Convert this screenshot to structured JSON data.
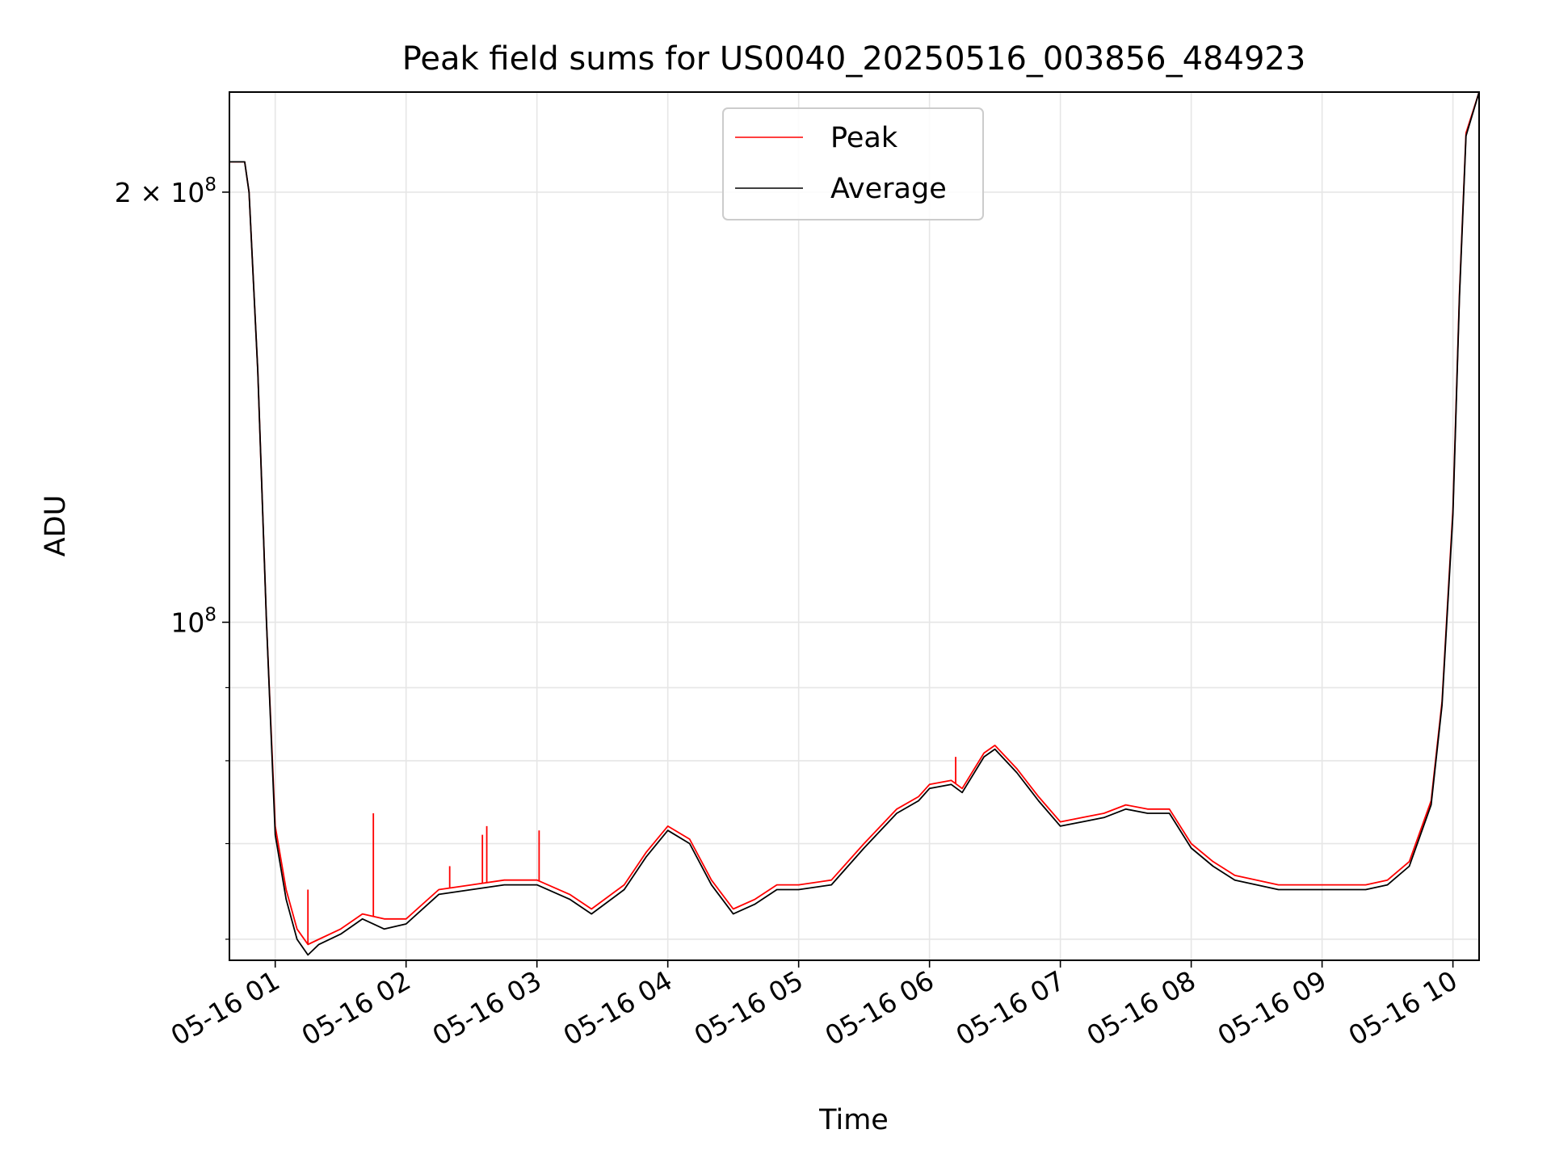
{
  "chart_data": {
    "type": "line",
    "title": "Peak field sums for US0040_20250516_003856_484923",
    "xlabel": "Time",
    "ylabel": "ADU",
    "yscale": "log",
    "xlim": [
      "05-16 00:39",
      "05-16 10:12"
    ],
    "ylim": [
      58000000,
      235000000
    ],
    "x_ticks": [
      {
        "x": "05-16 01:00",
        "label": "05-16 01"
      },
      {
        "x": "05-16 02:00",
        "label": "05-16 02"
      },
      {
        "x": "05-16 03:00",
        "label": "05-16 03"
      },
      {
        "x": "05-16 04:00",
        "label": "05-16 04"
      },
      {
        "x": "05-16 05:00",
        "label": "05-16 05"
      },
      {
        "x": "05-16 06:00",
        "label": "05-16 06"
      },
      {
        "x": "05-16 07:00",
        "label": "05-16 07"
      },
      {
        "x": "05-16 08:00",
        "label": "05-16 08"
      },
      {
        "x": "05-16 09:00",
        "label": "05-16 09"
      },
      {
        "x": "05-16 10:00",
        "label": "05-16 10"
      }
    ],
    "y_ticks": [
      {
        "y": 100000000,
        "label_base": "10",
        "label_exp": "8"
      },
      {
        "y": 200000000,
        "label_base": "2 × 10",
        "label_exp": "8"
      }
    ],
    "y_minor_ticks": [
      60000000,
      70000000,
      80000000,
      90000000
    ],
    "grid": true,
    "legend_position": "top-center",
    "series": [
      {
        "name": "Peak",
        "color": "#ff0000",
        "x": [
          "05-16 00:39",
          "05-16 00:46",
          "05-16 00:48",
          "05-16 00:52",
          "05-16 00:56",
          "05-16 01:00",
          "05-16 01:05",
          "05-16 01:10",
          "05-16 01:15",
          "05-16 01:20",
          "05-16 01:30",
          "05-16 01:40",
          "05-16 01:50",
          "05-16 02:00",
          "05-16 02:15",
          "05-16 02:30",
          "05-16 02:45",
          "05-16 03:00",
          "05-16 03:15",
          "05-16 03:25",
          "05-16 03:40",
          "05-16 03:50",
          "05-16 04:00",
          "05-16 04:10",
          "05-16 04:20",
          "05-16 04:30",
          "05-16 04:40",
          "05-16 04:50",
          "05-16 05:00",
          "05-16 05:15",
          "05-16 05:30",
          "05-16 05:45",
          "05-16 05:55",
          "05-16 06:00",
          "05-16 06:10",
          "05-16 06:15",
          "05-16 06:25",
          "05-16 06:30",
          "05-16 06:40",
          "05-16 06:50",
          "05-16 07:00",
          "05-16 07:10",
          "05-16 07:20",
          "05-16 07:30",
          "05-16 07:40",
          "05-16 07:50",
          "05-16 08:00",
          "05-16 08:10",
          "05-16 08:20",
          "05-16 08:30",
          "05-16 08:40",
          "05-16 09:00",
          "05-16 09:20",
          "05-16 09:30",
          "05-16 09:40",
          "05-16 09:50",
          "05-16 09:55",
          "05-16 10:00",
          "05-16 10:03",
          "05-16 10:06",
          "05-16 10:12"
        ],
        "y": [
          210000000,
          210000000,
          200000000,
          150000000,
          100000000,
          72000000,
          65000000,
          61000000,
          59500000,
          60000000,
          61000000,
          62500000,
          62000000,
          62000000,
          65000000,
          65500000,
          66000000,
          66000000,
          64500000,
          63000000,
          65500000,
          69000000,
          72000000,
          70500000,
          66000000,
          63000000,
          64000000,
          65500000,
          65500000,
          66000000,
          70000000,
          74000000,
          75500000,
          77000000,
          77500000,
          76500000,
          81000000,
          82000000,
          79000000,
          75500000,
          72500000,
          73000000,
          73500000,
          74500000,
          74000000,
          74000000,
          70000000,
          68000000,
          66500000,
          66000000,
          65500000,
          65500000,
          65500000,
          66000000,
          68000000,
          75000000,
          88000000,
          120000000,
          170000000,
          220000000,
          235000000
        ],
        "spikes": [
          {
            "x": "05-16 01:15",
            "y": 65000000
          },
          {
            "x": "05-16 01:45",
            "y": 73500000
          },
          {
            "x": "05-16 02:20",
            "y": 67500000
          },
          {
            "x": "05-16 02:35",
            "y": 71000000
          },
          {
            "x": "05-16 02:37",
            "y": 72000000
          },
          {
            "x": "05-16 03:01",
            "y": 71500000
          },
          {
            "x": "05-16 06:12",
            "y": 80500000
          }
        ]
      },
      {
        "name": "Average",
        "color": "#000000",
        "x": [
          "05-16 00:39",
          "05-16 00:46",
          "05-16 00:48",
          "05-16 00:52",
          "05-16 00:56",
          "05-16 01:00",
          "05-16 01:05",
          "05-16 01:10",
          "05-16 01:15",
          "05-16 01:20",
          "05-16 01:30",
          "05-16 01:40",
          "05-16 01:50",
          "05-16 02:00",
          "05-16 02:15",
          "05-16 02:30",
          "05-16 02:45",
          "05-16 03:00",
          "05-16 03:15",
          "05-16 03:25",
          "05-16 03:40",
          "05-16 03:50",
          "05-16 04:00",
          "05-16 04:10",
          "05-16 04:20",
          "05-16 04:30",
          "05-16 04:40",
          "05-16 04:50",
          "05-16 05:00",
          "05-16 05:15",
          "05-16 05:30",
          "05-16 05:45",
          "05-16 05:55",
          "05-16 06:00",
          "05-16 06:10",
          "05-16 06:15",
          "05-16 06:25",
          "05-16 06:30",
          "05-16 06:40",
          "05-16 06:50",
          "05-16 07:00",
          "05-16 07:10",
          "05-16 07:20",
          "05-16 07:30",
          "05-16 07:40",
          "05-16 07:50",
          "05-16 08:00",
          "05-16 08:10",
          "05-16 08:20",
          "05-16 08:30",
          "05-16 08:40",
          "05-16 09:00",
          "05-16 09:20",
          "05-16 09:30",
          "05-16 09:40",
          "05-16 09:50",
          "05-16 09:55",
          "05-16 10:00",
          "05-16 10:03",
          "05-16 10:06",
          "05-16 10:12"
        ],
        "y": [
          210000000,
          210000000,
          200000000,
          150000000,
          100000000,
          71000000,
          64000000,
          60000000,
          58500000,
          59500000,
          60500000,
          62000000,
          61000000,
          61500000,
          64500000,
          65000000,
          65500000,
          65500000,
          64000000,
          62500000,
          65000000,
          68500000,
          71500000,
          70000000,
          65500000,
          62500000,
          63500000,
          65000000,
          65000000,
          65500000,
          69500000,
          73500000,
          75000000,
          76500000,
          77000000,
          76000000,
          80500000,
          81500000,
          78500000,
          75000000,
          72000000,
          72500000,
          73000000,
          74000000,
          73500000,
          73500000,
          69500000,
          67500000,
          66000000,
          65500000,
          65000000,
          65000000,
          65000000,
          65500000,
          67500000,
          74500000,
          87500000,
          119000000,
          169000000,
          219000000,
          235000000
        ]
      }
    ]
  }
}
